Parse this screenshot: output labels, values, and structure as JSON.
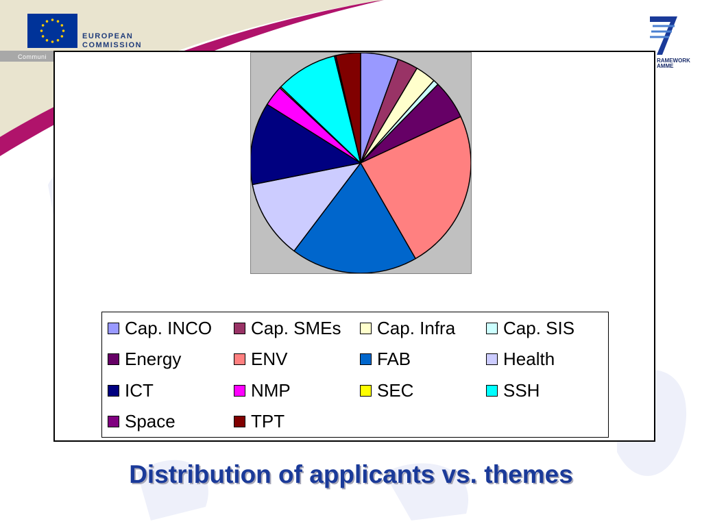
{
  "slide": {
    "title": "Distribution of applicants vs. themes",
    "header_left": {
      "line1": "EUROPEAN",
      "line2": "COMMISSION",
      "line3": "Communi"
    },
    "header_right": {
      "line1": "RAMEWORK",
      "line2": "AMME"
    }
  },
  "colors": {
    "title": "#1a3a99",
    "swoosh_beige": "#e9e4cf",
    "swoosh_magenta": "#b0136b",
    "plot_background": "#c0c0c0"
  },
  "chart_data": {
    "type": "pie",
    "title": "",
    "legend_position": "bottom",
    "slices": [
      {
        "label": "Cap. INCO",
        "value": 5.5,
        "color": "#9999ff"
      },
      {
        "label": "Cap. SMEs",
        "value": 3.0,
        "color": "#993366"
      },
      {
        "label": "Cap. Infra",
        "value": 3.0,
        "color": "#ffffcc"
      },
      {
        "label": "Cap. SIS",
        "value": 0.8,
        "color": "#ccffff"
      },
      {
        "label": "Energy",
        "value": 5.7,
        "color": "#660066"
      },
      {
        "label": "ENV",
        "value": 23.5,
        "color": "#ff8080"
      },
      {
        "label": "FAB",
        "value": 18.5,
        "color": "#0066cc"
      },
      {
        "label": "Health",
        "value": 11.5,
        "color": "#ccccff"
      },
      {
        "label": "ICT",
        "value": 12.0,
        "color": "#000080"
      },
      {
        "label": "NMP",
        "value": 3.0,
        "color": "#ff00ff"
      },
      {
        "label": "SEC",
        "value": 0.2,
        "color": "#ffff00"
      },
      {
        "label": "SSH",
        "value": 9.0,
        "color": "#00ffff"
      },
      {
        "label": "Space",
        "value": 0.2,
        "color": "#800080"
      },
      {
        "label": "TPT",
        "value": 3.6,
        "color": "#800000"
      }
    ]
  }
}
